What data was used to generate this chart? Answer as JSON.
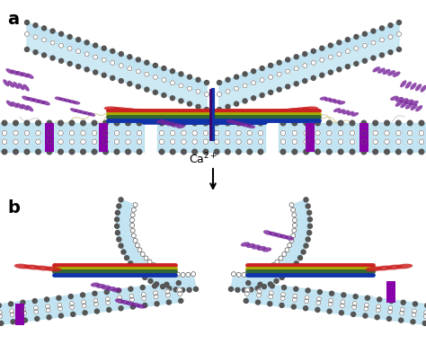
{
  "fig_width": 4.74,
  "fig_height": 3.83,
  "dpi": 100,
  "bg_color": "#ffffff",
  "label_a": "a",
  "label_b": "b",
  "membrane_light": "#b8e0f0",
  "membrane_outer_dot": "#555555",
  "membrane_inner_dot_open": "#aaaaaa",
  "membrane_purple": "#8800aa",
  "protein_red": "#cc2222",
  "protein_green": "#336633",
  "protein_blue": "#1133aa",
  "protein_yellow": "#aaaa00",
  "protein_purple": "#772299",
  "protein_dark_purple": "#440066",
  "linker_color": "#c8c080",
  "wavy_color": "#bbbbcc",
  "arrow_color": "#111111"
}
